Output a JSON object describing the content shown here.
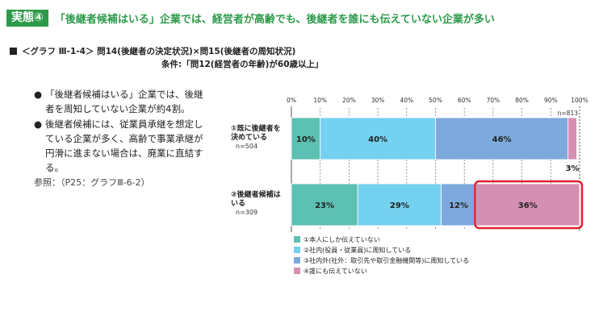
{
  "header": {
    "badge": "実態④",
    "headline": "「後継者候補はいる」企業では、経営者が高齢でも、後継者を誰にも伝えていない企業が多い"
  },
  "graph": {
    "title": "＜グラフ Ⅲ-1-4＞ 問14(後継者の決定状況)×問15(後継者の周知状況)",
    "condition": "条件:「問12(経営者の年齢)が60歳以上」"
  },
  "notes": {
    "bullets": [
      {
        "dot": "●",
        "text": "「後継者候補はいる」企業では、後継者を周知していない企業が約4割。"
      },
      {
        "dot": "●",
        "text": "後継者候補には、従業員承継を想定している企業が多く、高齢で事業承継が円滑に進まない場合は、廃業に直結する。"
      }
    ],
    "reference": "参照：（P25：グラフⅢ-6-2）"
  },
  "chart_data": {
    "type": "bar",
    "orientation": "horizontal",
    "stacked": true,
    "percent": true,
    "xlim": [
      0,
      100
    ],
    "x_ticks": [
      "0%",
      "10%",
      "20%",
      "30%",
      "40%",
      "50%",
      "60%",
      "70%",
      "80%",
      "90%",
      "100%"
    ],
    "total_n": "n=813",
    "categories": [
      {
        "label_lines": [
          "①既に後継者を",
          "決めている"
        ],
        "n": "n=504"
      },
      {
        "label_lines": [
          "②後継者候補は",
          "いる"
        ],
        "n": "n=309"
      }
    ],
    "series": [
      {
        "name": "①本人にしか伝えていない",
        "color": "#5cc0b2",
        "values": [
          10,
          23
        ]
      },
      {
        "name": "②社内(役員・従業員)に周知している",
        "color": "#74d1ef",
        "values": [
          40,
          29
        ]
      },
      {
        "name": "③社内外(社外：取引先や取引金融機関等)に周知している",
        "color": "#7ea9dd",
        "values": [
          46,
          12
        ]
      },
      {
        "name": "④誰にも伝えていない",
        "color": "#d58fb2",
        "values": [
          3,
          36
        ]
      }
    ],
    "data_labels": [
      [
        "10%",
        "40%",
        "46%",
        "3%"
      ],
      [
        "23%",
        "29%",
        "12%",
        "36%"
      ]
    ],
    "highlight": {
      "category_index": 1,
      "series_index": 3,
      "color": "#e0202f"
    },
    "legend_position": "bottom-left"
  }
}
